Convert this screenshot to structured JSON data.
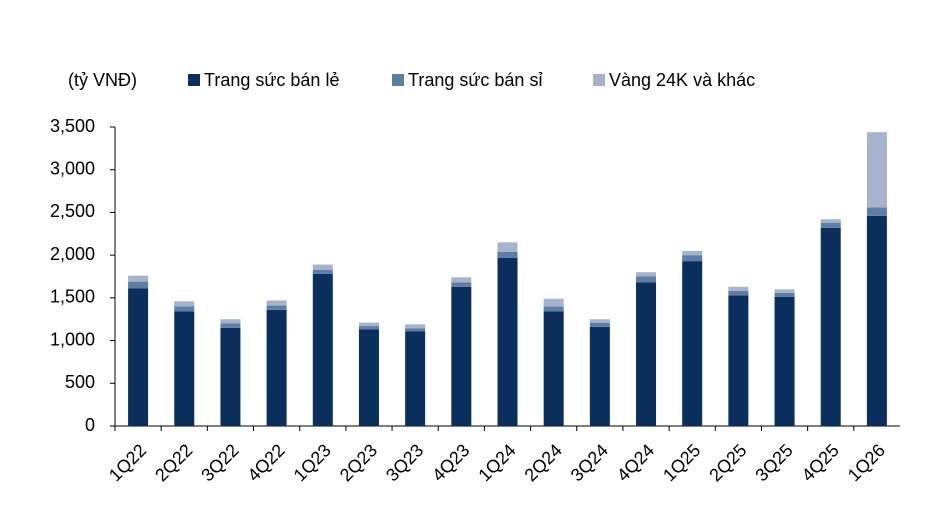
{
  "chart_data": {
    "type": "stacked_bar",
    "y_label": "(tỷ VNĐ)",
    "categories": [
      "1Q22",
      "2Q22",
      "3Q22",
      "4Q22",
      "1Q23",
      "2Q23",
      "3Q23",
      "4Q23",
      "1Q24",
      "2Q24",
      "3Q24",
      "4Q24",
      "1Q25",
      "2Q25",
      "3Q25",
      "4Q25",
      "1Q26"
    ],
    "series": [
      {
        "name": "Trang sức bán lẻ",
        "color": "#0b2f5c",
        "values": [
          1610,
          1340,
          1150,
          1360,
          1780,
          1130,
          1110,
          1630,
          1970,
          1340,
          1160,
          1680,
          1930,
          1530,
          1510,
          2320,
          2460
        ]
      },
      {
        "name": "Trang sức bán sỉ",
        "color": "#5f7ea5",
        "values": [
          80,
          60,
          50,
          50,
          50,
          40,
          35,
          50,
          70,
          60,
          50,
          70,
          70,
          50,
          50,
          60,
          100
        ]
      },
      {
        "name": "Vàng 24K và khác",
        "color": "#a5b4cc",
        "values": [
          70,
          60,
          50,
          60,
          60,
          40,
          45,
          60,
          110,
          90,
          40,
          50,
          50,
          50,
          40,
          40,
          880
        ]
      }
    ],
    "ylim": [
      0,
      3500
    ],
    "yticks": [
      0,
      {
        "value": 500,
        "label": "500"
      },
      {
        "value": 1000,
        "label": "1,000"
      },
      {
        "value": 1500,
        "label": "1,500"
      },
      {
        "value": 2000,
        "label": "2,000"
      },
      {
        "value": 2500,
        "label": "2,500"
      },
      {
        "value": 3000,
        "label": "3,000"
      },
      {
        "value": 3500,
        "label": "3,500"
      }
    ]
  }
}
